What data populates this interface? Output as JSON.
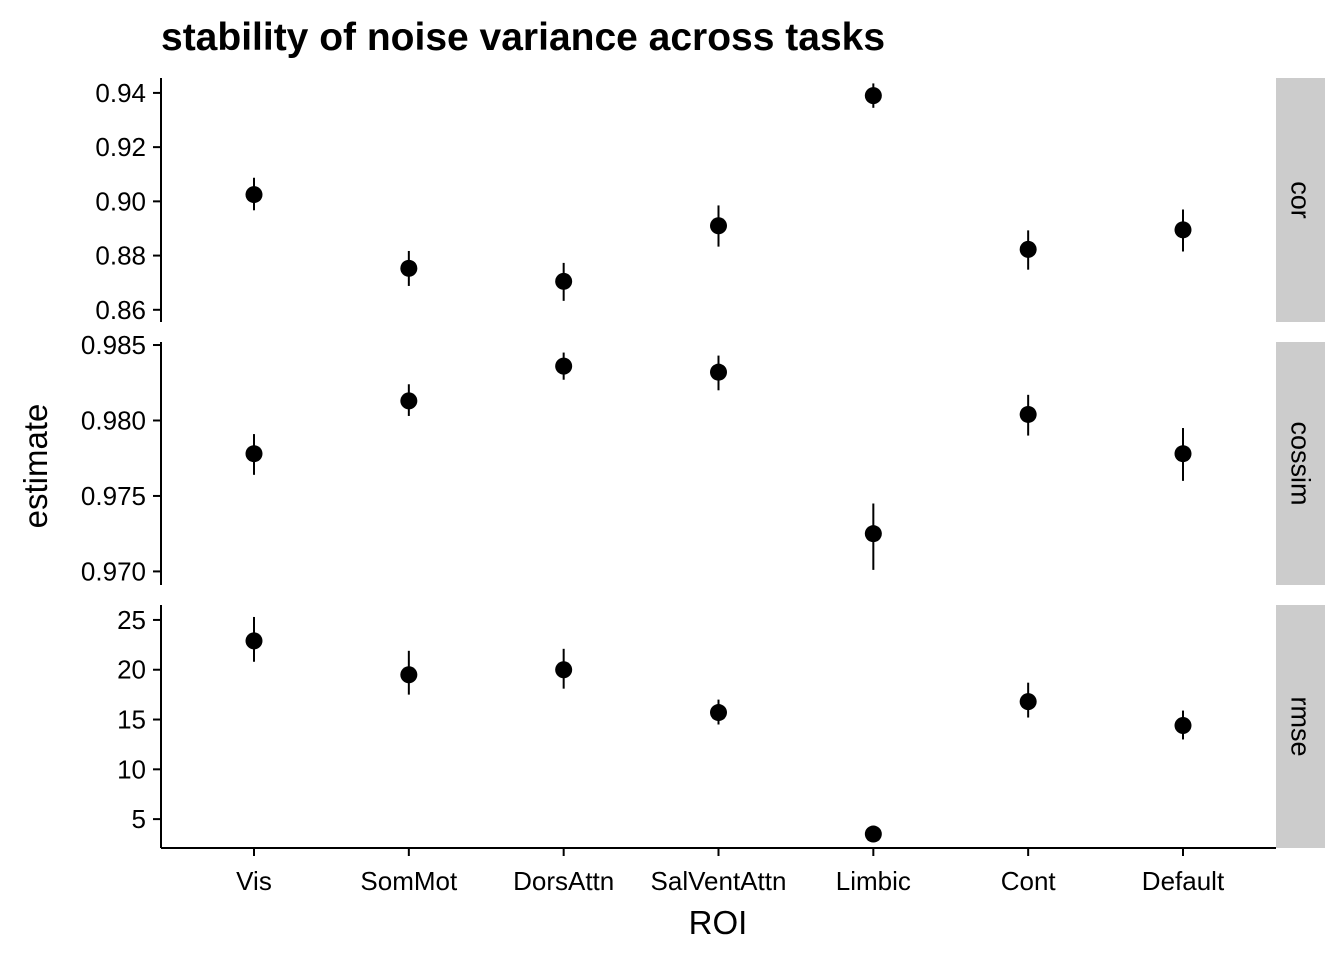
{
  "chart_data": {
    "type": "scatter",
    "title": "stability of noise variance across tasks",
    "xlabel": "ROI",
    "ylabel": "estimate",
    "categories": [
      "Vis",
      "SomMot",
      "DorsAttn",
      "SalVentAttn",
      "Limbic",
      "Cont",
      "Default"
    ],
    "grid": false,
    "legend": "none",
    "colors": {
      "point": "#000000",
      "strip": "#cccccc",
      "axis": "#000000"
    },
    "facets": [
      {
        "name": "cor",
        "ylim": [
          0.8555,
          0.9455
        ],
        "yticks": [
          0.86,
          0.88,
          0.9,
          0.92,
          0.94
        ],
        "ytick_labels": [
          "0.86",
          "0.88",
          "0.90",
          "0.92",
          "0.94"
        ],
        "values": [
          0.9025,
          0.8753,
          0.8705,
          0.891,
          0.939,
          0.8823,
          0.8895
        ],
        "lower": [
          0.8967,
          0.8688,
          0.8633,
          0.8833,
          0.9345,
          0.8748,
          0.8815
        ],
        "upper": [
          0.9087,
          0.8817,
          0.8773,
          0.8985,
          0.9435,
          0.8893,
          0.897
        ]
      },
      {
        "name": "cossim",
        "ylim": [
          0.9691,
          0.9852
        ],
        "yticks": [
          0.97,
          0.975,
          0.98,
          0.985
        ],
        "ytick_labels": [
          "0.970",
          "0.975",
          "0.980",
          "0.985"
        ],
        "values": [
          0.9778,
          0.9813,
          0.9836,
          0.9832,
          0.9725,
          0.9804,
          0.9778
        ],
        "lower": [
          0.9764,
          0.9803,
          0.9827,
          0.982,
          0.9701,
          0.979,
          0.976
        ],
        "upper": [
          0.9791,
          0.9824,
          0.9845,
          0.9843,
          0.9745,
          0.9817,
          0.9795
        ]
      },
      {
        "name": "rmse",
        "ylim": [
          2.1,
          26.5
        ],
        "yticks": [
          5,
          10,
          15,
          20,
          25
        ],
        "ytick_labels": [
          "5",
          "10",
          "15",
          "20",
          "25"
        ],
        "values": [
          22.9,
          19.5,
          20.0,
          15.7,
          3.5,
          16.8,
          14.4
        ],
        "lower": [
          20.8,
          17.5,
          18.1,
          14.5,
          3.1,
          15.2,
          13.0
        ],
        "upper": [
          25.3,
          21.9,
          22.1,
          17.0,
          3.9,
          18.7,
          15.9
        ]
      }
    ]
  }
}
